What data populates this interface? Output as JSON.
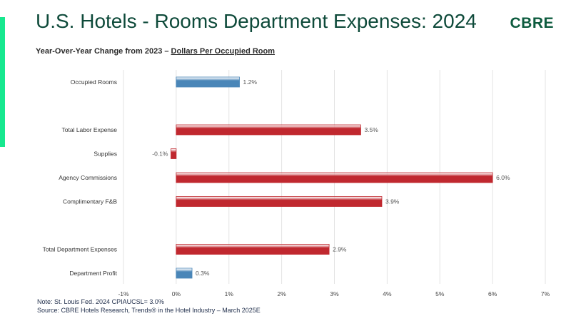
{
  "header": {
    "title": "U.S. Hotels - Rooms Department Expenses: 2024",
    "logo": "CBRE",
    "subtitle_prefix": "Year-Over-Year Change from 2023 – ",
    "subtitle_underlined": "Dollars Per Occupied Room"
  },
  "footer": {
    "note": "Note:  St. Louis Fed. 2024 CPIAUCSL= 3.0%",
    "source": "Source: CBRE Hotels Research, Trends® in the Hotel Industry – March 2025E"
  },
  "colors": {
    "accent": "#17e88f",
    "brand": "#0e5c3f",
    "bar_blue": "#4a86b8",
    "bar_red": "#c0282f"
  },
  "chart_data": {
    "type": "bar",
    "orientation": "horizontal",
    "categories": [
      "Occupied Rooms",
      "",
      "Total Labor Expense",
      "Supplies",
      "Agency Commissions",
      "Complimentary F&B",
      "",
      "Total Department Expenses",
      "Department Profit"
    ],
    "values": [
      1.2,
      null,
      3.5,
      -0.1,
      6.0,
      3.9,
      null,
      2.9,
      0.3
    ],
    "data_labels": [
      "1.2%",
      "",
      "3.5%",
      "-0.1%",
      "6.0%",
      "3.9%",
      "",
      "2.9%",
      "0.3%"
    ],
    "bar_colors": [
      "#4a86b8",
      null,
      "#c0282f",
      "#c0282f",
      "#c0282f",
      "#c0282f",
      null,
      "#c0282f",
      "#4a86b8"
    ],
    "xlim": [
      -1,
      7
    ],
    "x_ticks": [
      "-1%",
      "0%",
      "1%",
      "2%",
      "3%",
      "4%",
      "5%",
      "6%",
      "7%"
    ],
    "grid": true,
    "legend": "none"
  }
}
